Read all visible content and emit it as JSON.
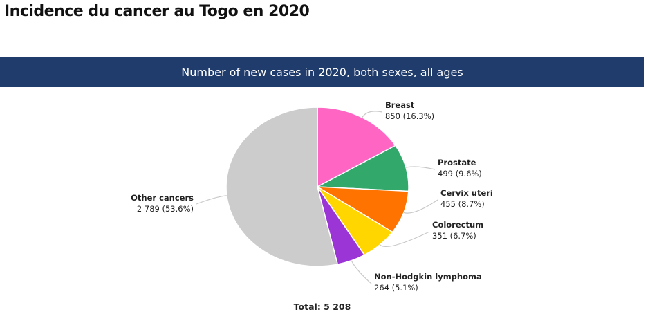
{
  "page_title": "Incidence du cancer au Togo en 2020",
  "chart_data": {
    "type": "pie",
    "title": "Number of new cases in 2020, both sexes, all ages",
    "total_label": "Total: 5 208",
    "total": 5208,
    "slices": [
      {
        "name": "Breast",
        "value": 850,
        "value_label": "850 (16.3%)",
        "percent": 16.3,
        "color": "#ff66c4"
      },
      {
        "name": "Prostate",
        "value": 499,
        "value_label": "499 (9.6%)",
        "percent": 9.6,
        "color": "#33a86b"
      },
      {
        "name": "Cervix uteri",
        "value": 455,
        "value_label": "455 (8.7%)",
        "percent": 8.7,
        "color": "#ff7300"
      },
      {
        "name": "Colorectum",
        "value": 351,
        "value_label": "351 (6.7%)",
        "percent": 6.7,
        "color": "#ffd600"
      },
      {
        "name": "Non-Hodgkin lymphoma",
        "value": 264,
        "value_label": "264 (5.1%)",
        "percent": 5.1,
        "color": "#9b35d6"
      },
      {
        "name": "Other cancers",
        "value": 2789,
        "value_label": "2 789 (53.6%)",
        "percent": 53.6,
        "color": "#cccccc"
      }
    ]
  }
}
